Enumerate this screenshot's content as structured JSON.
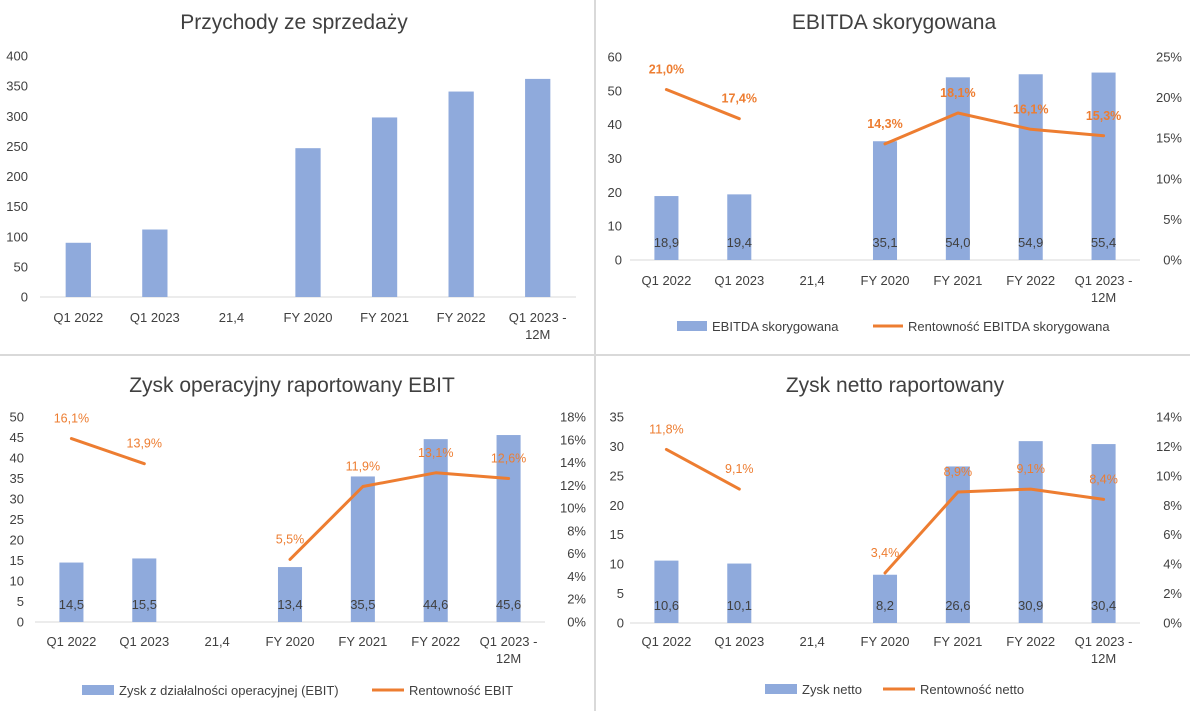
{
  "colors": {
    "bar": "#8FAADC",
    "line": "#ED7D31",
    "divider": "#D9D9D9",
    "text": "#404040"
  },
  "chart_data": [
    {
      "type": "bar",
      "title": "Przychody ze sprzedaży",
      "categories": [
        "Q1 2022",
        "Q1 2023",
        "21,4",
        "FY 2020",
        "FY 2021",
        "FY 2022",
        "Q1 2023 -\n12M"
      ],
      "ylim": [
        0,
        400
      ],
      "yticks": [
        "0",
        "50",
        "100",
        "150",
        "200",
        "250",
        "300",
        "350",
        "400"
      ],
      "series": [
        {
          "values": [
            90,
            112,
            null,
            247,
            298,
            341,
            362
          ]
        }
      ],
      "legend": []
    },
    {
      "type": "bar+line",
      "title": "EBITDA skorygowana",
      "categories": [
        "Q1 2022",
        "Q1 2023",
        "21,4",
        "FY 2020",
        "FY 2021",
        "FY 2022",
        "Q1 2023 -\n12M"
      ],
      "ylim": [
        0,
        60
      ],
      "yticks": [
        "0",
        "10",
        "20",
        "30",
        "40",
        "50",
        "60"
      ],
      "y2lim": [
        0,
        25
      ],
      "y2ticks": [
        "0%",
        "5%",
        "10%",
        "15%",
        "20%",
        "25%"
      ],
      "series": [
        {
          "name": "EBITDA skorygowana",
          "values": [
            18.9,
            19.4,
            null,
            35.1,
            54.0,
            54.9,
            55.4
          ],
          "labels": [
            "18,9",
            "19,4",
            "",
            "35,1",
            "54,0",
            "54,9",
            "55,4"
          ]
        },
        {
          "name": "Rentowność EBITDA skorygowana",
          "axis": "secondary",
          "values": [
            21.0,
            17.4,
            null,
            14.3,
            18.1,
            16.1,
            15.3
          ],
          "labels": [
            "21,0%",
            "17,4%",
            "",
            "14,3%",
            "18,1%",
            "16,1%",
            "15,3%"
          ],
          "label_bold": true
        }
      ],
      "legend": [
        "EBITDA skorygowana",
        "Rentowność EBITDA skorygowana"
      ]
    },
    {
      "type": "bar+line",
      "title": "Zysk operacyjny raportowany EBIT",
      "categories": [
        "Q1 2022",
        "Q1 2023",
        "21,4",
        "FY 2020",
        "FY 2021",
        "FY 2022",
        "Q1 2023 -\n12M"
      ],
      "ylim": [
        0,
        50
      ],
      "yticks": [
        "0",
        "5",
        "10",
        "15",
        "20",
        "25",
        "30",
        "35",
        "40",
        "45",
        "50"
      ],
      "y2lim": [
        0,
        18
      ],
      "y2ticks": [
        "0%",
        "2%",
        "4%",
        "6%",
        "8%",
        "10%",
        "12%",
        "14%",
        "16%",
        "18%"
      ],
      "series": [
        {
          "name": "Zysk z działalności operacyjnej (EBIT)",
          "values": [
            14.5,
            15.5,
            null,
            13.4,
            35.5,
            44.6,
            45.6
          ],
          "labels": [
            "14,5",
            "15,5",
            "",
            "13,4",
            "35,5",
            "44,6",
            "45,6"
          ]
        },
        {
          "name": "Rentowność EBIT",
          "axis": "secondary",
          "values": [
            16.1,
            13.9,
            null,
            5.5,
            11.9,
            13.1,
            12.6
          ],
          "labels": [
            "16,1%",
            "13,9%",
            "",
            "5,5%",
            "11,9%",
            "13,1%",
            "12,6%"
          ],
          "label_bold": false
        }
      ],
      "legend": [
        "Zysk z działalności operacyjnej (EBIT)",
        "Rentowność EBIT"
      ]
    },
    {
      "type": "bar+line",
      "title": "Zysk netto raportowany",
      "categories": [
        "Q1 2022",
        "Q1 2023",
        "21,4",
        "FY 2020",
        "FY 2021",
        "FY 2022",
        "Q1 2023 -\n12M"
      ],
      "ylim": [
        0,
        35
      ],
      "yticks": [
        "0",
        "5",
        "10",
        "15",
        "20",
        "25",
        "30",
        "35"
      ],
      "y2lim": [
        0,
        14
      ],
      "y2ticks": [
        "0%",
        "2%",
        "4%",
        "6%",
        "8%",
        "10%",
        "12%",
        "14%"
      ],
      "series": [
        {
          "name": "Zysk netto",
          "values": [
            10.6,
            10.1,
            null,
            8.2,
            26.6,
            30.9,
            30.4
          ],
          "labels": [
            "10,6",
            "10,1",
            "",
            "8,2",
            "26,6",
            "30,9",
            "30,4"
          ]
        },
        {
          "name": "Rentowność netto",
          "axis": "secondary",
          "values": [
            11.8,
            9.1,
            null,
            3.4,
            8.9,
            9.1,
            8.4
          ],
          "labels": [
            "11,8%",
            "9,1%",
            "",
            "3,4%",
            "8,9%",
            "9,1%",
            "8,4%"
          ],
          "label_bold": false
        }
      ],
      "legend": [
        "Zysk netto",
        "Rentowność netto"
      ]
    }
  ]
}
